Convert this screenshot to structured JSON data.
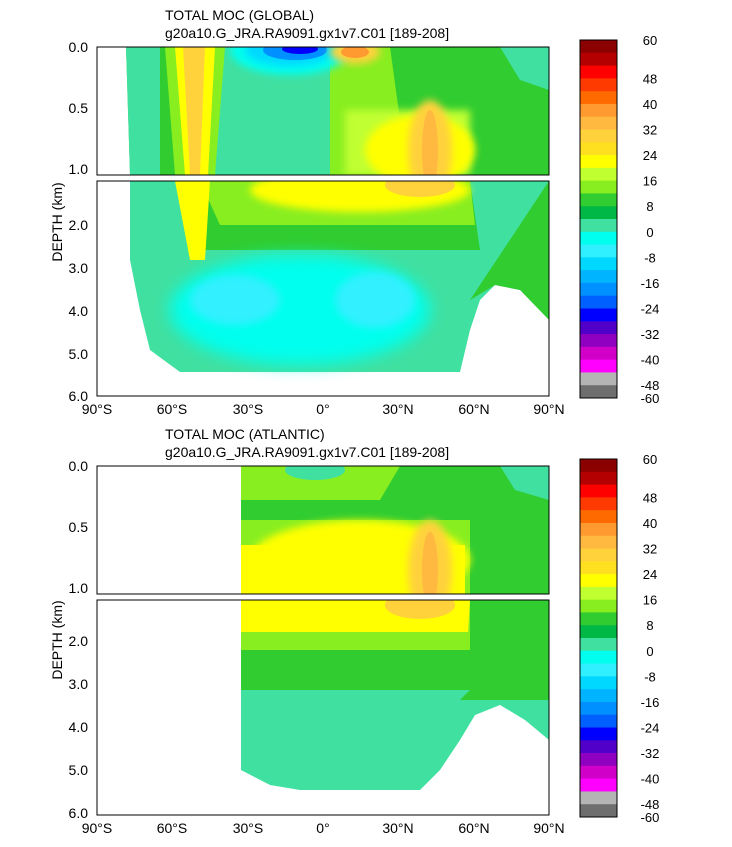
{
  "colorbar": {
    "labels": [
      "60",
      "48",
      "40",
      "32",
      "24",
      "16",
      "8",
      "0",
      "-8",
      "-16",
      "-24",
      "-32",
      "-40",
      "-48",
      "-60"
    ],
    "colors": [
      "#8b0000",
      "#b40000",
      "#ff0000",
      "#ff3a00",
      "#ff6a00",
      "#ff9a30",
      "#ffb840",
      "#ffd23c",
      "#ffe020",
      "#ffff00",
      "#c0ff30",
      "#88ee20",
      "#30cc30",
      "#00b845",
      "#40e0a0",
      "#00ffee",
      "#30f0ff",
      "#00d8ff",
      "#00b4ff",
      "#0090ff",
      "#0060ff",
      "#0000ff",
      "#5000c8",
      "#9000c0",
      "#d000c8",
      "#ff00ff",
      "#b4b4b4",
      "#6e6e6e"
    ]
  },
  "chart_data": [
    {
      "type": "heatmap",
      "title": "TOTAL MOC (GLOBAL)",
      "subtitle": "g20a10.G_JRA.RA9091.gx1v7.C01 [189-208]",
      "ylabel": "DEPTH (km)",
      "xlabel": "",
      "x_ticks": [
        "90°S",
        "60°S",
        "30°S",
        "0°",
        "30°N",
        "60°N",
        "90°N"
      ],
      "x_range": [
        -90,
        90
      ],
      "y_ticks_upper": [
        "0.0",
        "0.5",
        "1.0"
      ],
      "y_ticks_lower": [
        "2.0",
        "3.0",
        "4.0",
        "5.0",
        "6.0"
      ],
      "y_range_upper_km": [
        0,
        1.05
      ],
      "y_range_lower_km": [
        1.15,
        6.0
      ],
      "z_range": [
        -60,
        60
      ],
      "data_lat_range": [
        -78,
        90
      ],
      "features": [
        {
          "lat": -45,
          "depth_km": 0.4,
          "value": 20
        },
        {
          "lat": -12,
          "depth_km": 0.05,
          "value": -44
        },
        {
          "lat": 10,
          "depth_km": 0.05,
          "value": 24
        },
        {
          "lat": 40,
          "depth_km": 1.0,
          "value": 22
        },
        {
          "lat": 0,
          "depth_km": 3.8,
          "value": -8
        },
        {
          "lat": 20,
          "depth_km": 1.5,
          "value": 16
        }
      ]
    },
    {
      "type": "heatmap",
      "title": "TOTAL MOC (ATLANTIC)",
      "subtitle": "g20a10.G_JRA.RA9091.gx1v7.C01 [189-208]",
      "ylabel": "DEPTH (km)",
      "xlabel": "",
      "x_ticks": [
        "90°S",
        "60°S",
        "30°S",
        "0°",
        "30°N",
        "60°N",
        "90°N"
      ],
      "x_range": [
        -90,
        90
      ],
      "y_ticks_upper": [
        "0.0",
        "0.5",
        "1.0"
      ],
      "y_ticks_lower": [
        "2.0",
        "3.0",
        "4.0",
        "5.0",
        "6.0"
      ],
      "y_range_upper_km": [
        0,
        1.05
      ],
      "y_range_lower_km": [
        1.15,
        6.0
      ],
      "z_range": [
        -60,
        60
      ],
      "data_lat_range": [
        -33,
        90
      ],
      "features": [
        {
          "lat": 40,
          "depth_km": 1.0,
          "value": 22
        },
        {
          "lat": 10,
          "depth_km": 0.8,
          "value": 16
        },
        {
          "lat": 0,
          "depth_km": 3.8,
          "value": -6
        }
      ]
    }
  ]
}
